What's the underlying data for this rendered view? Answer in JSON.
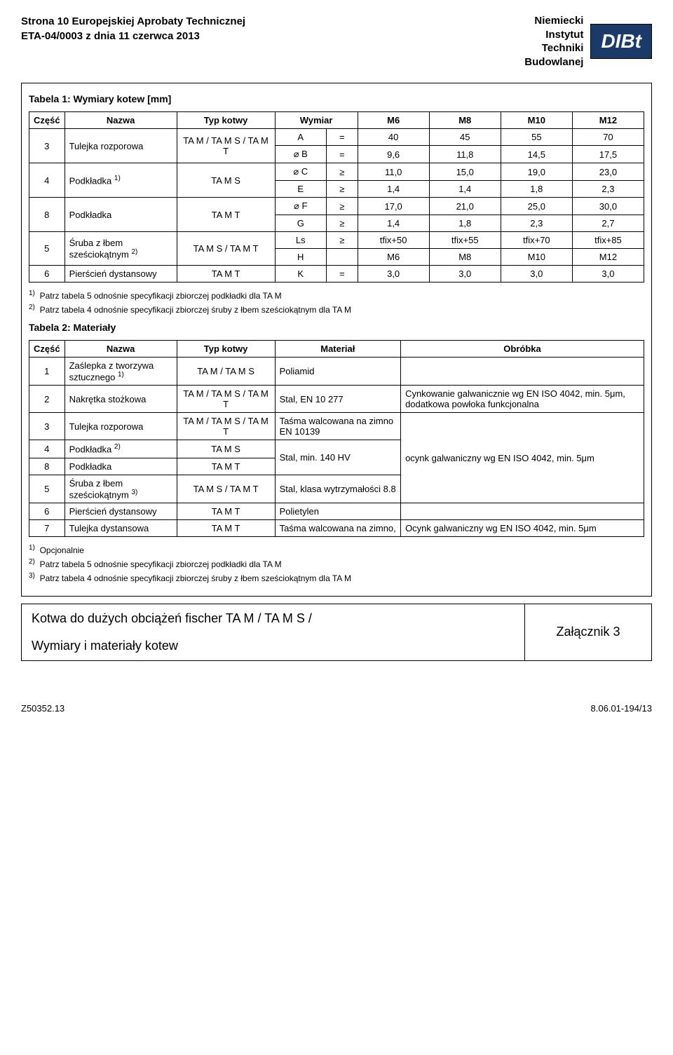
{
  "header": {
    "line1": "Strona 10 Europejskiej Aprobaty Technicznej",
    "line2": "ETA-04/0003 z dnia 11 czerwca 2013",
    "inst1": "Niemiecki",
    "inst2": "Instytut",
    "inst3": "Techniki",
    "inst4": "Budowlanej",
    "logo": "DIBt"
  },
  "table1": {
    "title": "Tabela 1: Wymiary kotew [mm]",
    "h_part": "Część",
    "h_name": "Nazwa",
    "h_type": "Typ kotwy",
    "h_dim": "Wymiar",
    "sizes": [
      "M6",
      "M8",
      "M10",
      "M12"
    ],
    "rows": [
      {
        "part": "3",
        "name": "Tulejka rozporowa",
        "type": "TA M / TA M S / TA M T",
        "dim": "A",
        "rel": "=",
        "vals": [
          "40",
          "45",
          "55",
          "70"
        ],
        "rowspan": 2,
        "dim2": "⌀ B",
        "rel2": "=",
        "vals2": [
          "9,6",
          "11,8",
          "14,5",
          "17,5"
        ]
      },
      {
        "part": "4",
        "name": "Podkładka",
        "sup": "1)",
        "type": "TA M S",
        "dim": "⌀ C",
        "rel": "≥",
        "vals": [
          "11,0",
          "15,0",
          "19,0",
          "23,0"
        ],
        "rowspan": 2,
        "dim2": "E",
        "rel2": "≥",
        "vals2": [
          "1,4",
          "1,4",
          "1,8",
          "2,3"
        ]
      },
      {
        "part": "8",
        "name": "Podkładka",
        "type": "TA M T",
        "dim": "⌀ F",
        "rel": "≥",
        "vals": [
          "17,0",
          "21,0",
          "25,0",
          "30,0"
        ],
        "rowspan": 2,
        "dim2": "G",
        "rel2": "≥",
        "vals2": [
          "1,4",
          "1,8",
          "2,3",
          "2,7"
        ]
      },
      {
        "part": "5",
        "name": "Śruba z łbem sześciokątnym",
        "sup": "2)",
        "type": "TA M S / TA M T",
        "dim": "Ls",
        "rel": "≥",
        "vals": [
          "tfix+50",
          "tfix+55",
          "tfix+70",
          "tfix+85"
        ],
        "rowspan": 2,
        "dim2": "H",
        "rel2": "",
        "vals2": [
          "M6",
          "M8",
          "M10",
          "M12"
        ]
      },
      {
        "part": "6",
        "name": "Pierścień dystansowy",
        "type": "TA M T",
        "dim": "K",
        "rel": "=",
        "vals": [
          "3,0",
          "3,0",
          "3,0",
          "3,0"
        ],
        "rowspan": 1
      }
    ],
    "fn1": "Patrz tabela 5 odnośnie specyfikacji zbiorczej podkładki dla TA M",
    "fn2": "Patrz tabela 4 odnośnie specyfikacji zbiorczej śruby z łbem sześciokątnym dla TA M"
  },
  "table2": {
    "title": "Tabela 2: Materiały",
    "h_part": "Część",
    "h_name": "Nazwa",
    "h_type": "Typ kotwy",
    "h_mat": "Materiał",
    "h_obr": "Obróbka",
    "rows": [
      {
        "part": "1",
        "name": "Zaślepka z tworzywa sztucznego",
        "sup": "1)",
        "type": "TA M / TA M S",
        "mat": "Poliamid",
        "obr": ""
      },
      {
        "part": "2",
        "name": "Nakrętka stożkowa",
        "type": "TA M / TA M S / TA M T",
        "mat": "Stal, EN 10 277",
        "obr": "Cynkowanie galwanicznie wg EN ISO 4042, min. 5μm, dodatkowa powłoka funkcjonalna"
      },
      {
        "part": "3",
        "name": "Tulejka rozporowa",
        "type": "TA M / TA M S / TA M T",
        "mat": "Taśma walcowana na zimno   EN 10139",
        "obr_rowspan": 4,
        "obr": "ocynk galwaniczny wg EN ISO 4042, min. 5μm"
      },
      {
        "part": "4",
        "name": "Podkładka",
        "sup": "2)",
        "type": "TA M S",
        "mat_rowspan": 2,
        "mat": "Stal, min. 140 HV"
      },
      {
        "part": "8",
        "name": "Podkładka",
        "type": "TA M T"
      },
      {
        "part": "5",
        "name": "Śruba z łbem sześciokątnym",
        "sup": "3)",
        "type": "TA M S / TA M T",
        "mat": "Stal, klasa wytrzymałości 8.8"
      },
      {
        "part": "6",
        "name": "Pierścień dystansowy",
        "type": "TA M T",
        "mat": "Polietylen",
        "obr": ""
      },
      {
        "part": "7",
        "name": "Tulejka dystansowa",
        "type": "TA M T",
        "mat": "Taśma walcowana na zimno,",
        "obr": "Ocynk galwaniczny wg EN ISO 4042, min. 5μm"
      }
    ],
    "fn1": "Opcjonalnie",
    "fn2": "Patrz tabela 5 odnośnie specyfikacji zbiorczej podkładki dla TA M",
    "fn3": "Patrz tabela 4 odnośnie specyfikacji zbiorczej śruby z łbem sześciokątnym dla TA M"
  },
  "bottom": {
    "title": "Kotwa do dużych obciążeń fischer  TA M / TA M S /",
    "subtitle": "Wymiary i materiały kotew",
    "annex": "Załącznik 3"
  },
  "footer": {
    "left": "Z50352.13",
    "right": "8.06.01-194/13"
  }
}
